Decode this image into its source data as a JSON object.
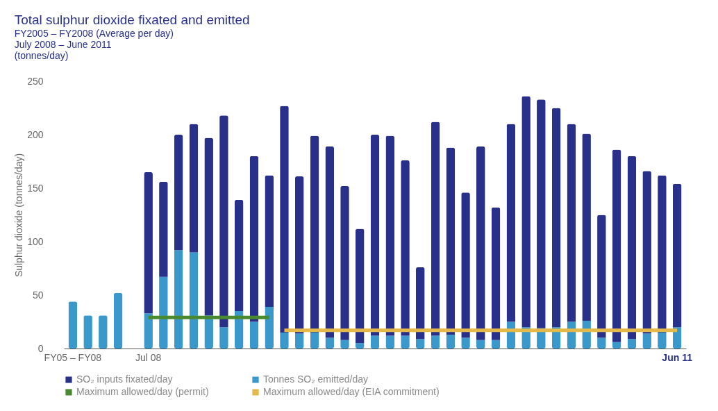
{
  "chart_data": {
    "type": "bar",
    "title": "Total sulphur dioxide fixated and emitted",
    "subtitle": "FY2005 – FY2008 (Average per day)\nJuly 2008 – June 2011\n(tonnes/day)",
    "ylabel": "Sulphur dioxide (tonnes/day)",
    "categories": [
      "FY05 – FY08",
      null,
      null,
      null,
      null,
      "Jul 08",
      null,
      null,
      null,
      null,
      null,
      null,
      null,
      null,
      null,
      null,
      null,
      null,
      null,
      null,
      null,
      null,
      null,
      null,
      null,
      null,
      null,
      null,
      null,
      null,
      null,
      null,
      null,
      null,
      null,
      null,
      null,
      null,
      null,
      null,
      "Jun 11"
    ],
    "stacked": true,
    "ylim": [
      0,
      250
    ],
    "yticks": [
      0,
      50,
      100,
      150,
      200,
      250
    ],
    "grid": false,
    "legend": "bottom",
    "series": [
      {
        "name": "Tonnes SO₂ emitted/day",
        "color": "#3a98cb",
        "values": [
          44,
          31,
          31,
          52,
          null,
          33,
          67,
          92,
          90,
          31,
          20,
          35,
          25,
          39,
          15,
          14,
          15,
          10,
          8,
          5,
          12,
          12,
          12,
          9,
          12,
          13,
          10,
          8,
          8,
          25,
          20,
          19,
          20,
          25,
          26,
          10,
          6,
          9,
          14,
          15,
          20
        ]
      },
      {
        "name": "SO₂ inputs fixated/day",
        "color": "#283089",
        "values": [
          null,
          null,
          null,
          null,
          null,
          132,
          89,
          108,
          120,
          166,
          198,
          104,
          155,
          123,
          212,
          147,
          184,
          179,
          144,
          107,
          188,
          187,
          164,
          67,
          200,
          175,
          136,
          181,
          124,
          185,
          216,
          214,
          205,
          185,
          175,
          115,
          180,
          171,
          152,
          147,
          134
        ]
      },
      {
        "name": "Maximum allowed/day (permit)",
        "type": "line",
        "color": "#4a8a2e",
        "values": [
          null,
          null,
          null,
          null,
          null,
          29,
          29,
          29,
          29,
          29,
          29,
          29,
          29,
          29,
          null,
          null,
          null,
          null,
          null,
          null,
          null,
          null,
          null,
          null,
          null,
          null,
          null,
          null,
          null,
          null,
          null,
          null,
          null,
          null,
          null,
          null,
          null,
          null,
          null,
          null,
          null
        ]
      },
      {
        "name": "Maximum allowed/day (EIA commitment)",
        "type": "line",
        "color": "#e3b94a",
        "values": [
          null,
          null,
          null,
          null,
          null,
          null,
          null,
          null,
          null,
          null,
          null,
          null,
          null,
          null,
          17,
          17,
          17,
          17,
          17,
          17,
          17,
          17,
          17,
          17,
          17,
          17,
          17,
          17,
          17,
          17,
          17,
          17,
          17,
          17,
          17,
          17,
          17,
          17,
          17,
          17,
          17
        ]
      }
    ]
  }
}
